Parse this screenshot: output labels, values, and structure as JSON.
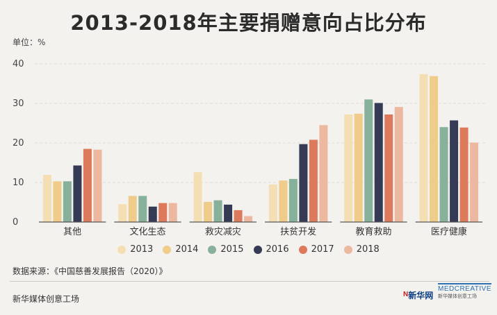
{
  "title": "2013-2018年主要捐赠意向占比分布",
  "unit_label": "单位：%",
  "source": "数据来源：《中国慈善发展报告（2020）》",
  "footer": "新华媒体创意工场",
  "logos": {
    "news": "新华网",
    "medcreative": "MEDCREATIVE",
    "medcreative_sub": "新华媒体创意工场"
  },
  "chart_data": {
    "type": "bar",
    "categories": [
      "其他",
      "文化生态",
      "救灾减灾",
      "扶贫开发",
      "教育救助",
      "医疗健康"
    ],
    "series": [
      {
        "name": "2013",
        "color": "#f3dfb3",
        "values": [
          11.9,
          4.5,
          12.6,
          9.5,
          27.2,
          37.4
        ]
      },
      {
        "name": "2014",
        "color": "#f0cc8a",
        "values": [
          10.3,
          6.6,
          5.1,
          10.5,
          27.4,
          36.9
        ]
      },
      {
        "name": "2015",
        "color": "#87b19a",
        "values": [
          10.3,
          6.6,
          5.5,
          10.9,
          31.0,
          24.0
        ]
      },
      {
        "name": "2016",
        "color": "#353a55",
        "values": [
          14.3,
          3.9,
          4.4,
          19.7,
          30.1,
          25.7
        ]
      },
      {
        "name": "2017",
        "color": "#dc7a5b",
        "values": [
          18.5,
          4.8,
          3.0,
          20.8,
          27.2,
          23.9
        ]
      },
      {
        "name": "2018",
        "color": "#ecb8a0",
        "values": [
          18.3,
          4.8,
          1.5,
          24.5,
          29.1,
          20.1
        ]
      }
    ],
    "ylim": [
      0,
      40
    ],
    "yticks": [
      0,
      10,
      20,
      30,
      40
    ],
    "grid": true,
    "legend_position": "bottom"
  }
}
